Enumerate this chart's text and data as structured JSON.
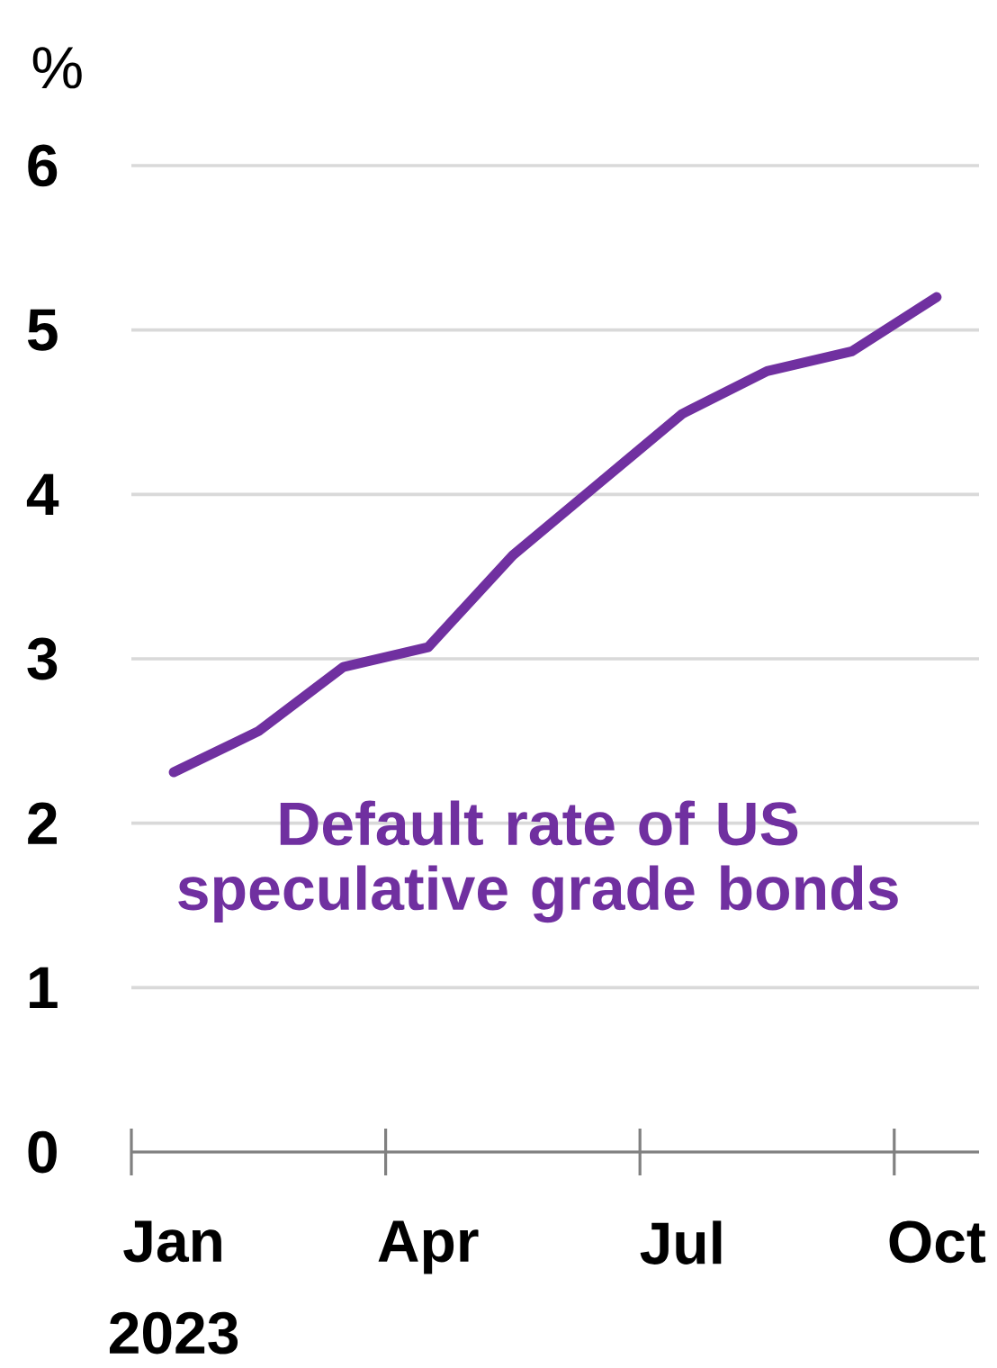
{
  "chart_data": {
    "type": "line",
    "ylabel": "%",
    "categories": [
      "Jan 2023",
      null,
      null,
      "Apr",
      null,
      null,
      "Jul",
      null,
      null,
      "Oct"
    ],
    "series": [
      {
        "name": "Default rate of US speculative grade bonds",
        "color": "#7030a0",
        "values": [
          2.31,
          2.56,
          2.95,
          3.07,
          3.63,
          4.06,
          4.49,
          4.75,
          4.87,
          5.2
        ]
      }
    ],
    "ylim": [
      0,
      6
    ],
    "yticks": [
      0,
      1,
      2,
      3,
      4,
      5,
      6
    ],
    "grid": "y",
    "marker": "none",
    "line_style": "solid"
  }
}
